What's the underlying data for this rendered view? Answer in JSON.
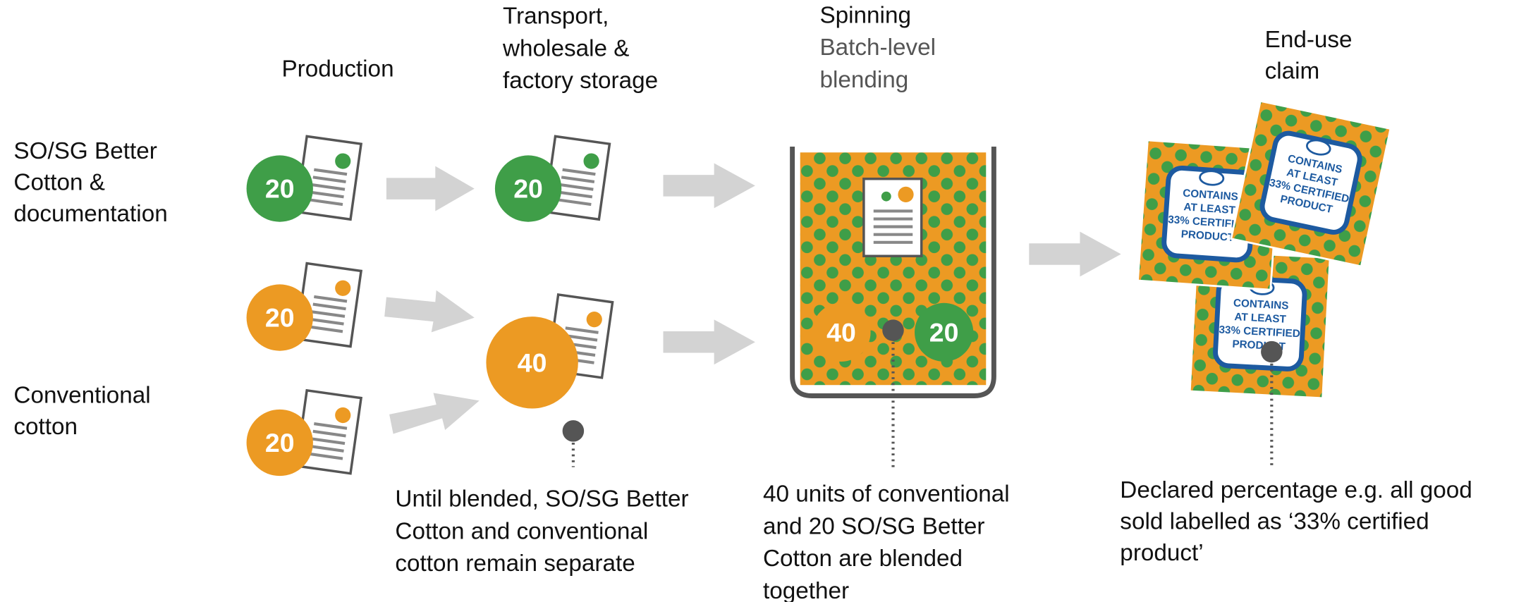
{
  "columns": [
    {
      "title": [
        "Production"
      ]
    },
    {
      "title": [
        "Transport,",
        "wholesale &",
        "factory storage"
      ]
    },
    {
      "title": [
        "Spinning"
      ],
      "subtitle": [
        "Batch-level",
        "blending"
      ]
    },
    {
      "title": [
        "End-use",
        "claim"
      ]
    }
  ],
  "rows": [
    {
      "label": [
        "SO/SG Better",
        "Cotton &",
        "documentation"
      ]
    },
    {
      "label": [
        "Conventional",
        "cotton"
      ]
    }
  ],
  "production": [
    "20",
    "20",
    "20"
  ],
  "transport": [
    "20",
    "40"
  ],
  "spinning": [
    "40",
    "20"
  ],
  "claim_label": [
    "CONTAINS",
    "AT LEAST",
    "33% CERTIFIED",
    "PRODUCT"
  ],
  "notes": [
    [
      "Until blended, SO/SG Better",
      "Cotton and conventional",
      "cotton remain separate"
    ],
    [
      "40 units of conventional",
      "and 20 SO/SG Better",
      "Cotton are blended",
      "together"
    ],
    [
      "Declared percentage e.g. all good",
      "sold labelled as ‘33% certified",
      "product’"
    ]
  ]
}
